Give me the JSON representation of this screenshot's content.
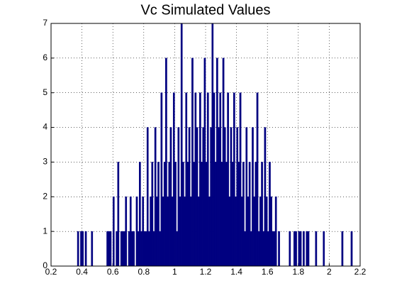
{
  "chart_data": {
    "type": "histogram",
    "title": "Vc Simulated Values",
    "bins": [
      0.36,
      0.37,
      0.38,
      0.39,
      0.4,
      0.41,
      0.42,
      0.43,
      0.44,
      0.45,
      0.46,
      0.47,
      0.48,
      0.49,
      0.5,
      0.51,
      0.52,
      0.53,
      0.54,
      0.55,
      0.56,
      0.57,
      0.58,
      0.59,
      0.6,
      0.61,
      0.62,
      0.63,
      0.64,
      0.65,
      0.66,
      0.67,
      0.68,
      0.69,
      0.7,
      0.71,
      0.72,
      0.73,
      0.74,
      0.75,
      0.76,
      0.77,
      0.78,
      0.79,
      0.8,
      0.81,
      0.82,
      0.83,
      0.84,
      0.85,
      0.86,
      0.87,
      0.88,
      0.89,
      0.9,
      0.91,
      0.92,
      0.93,
      0.94,
      0.95,
      0.96,
      0.97,
      0.98,
      0.99,
      1.0,
      1.01,
      1.02,
      1.03,
      1.04,
      1.05,
      1.06,
      1.07,
      1.08,
      1.09,
      1.1,
      1.11,
      1.12,
      1.13,
      1.14,
      1.15,
      1.16,
      1.17,
      1.18,
      1.19,
      1.2,
      1.21,
      1.22,
      1.23,
      1.24,
      1.25,
      1.26,
      1.27,
      1.28,
      1.29,
      1.3,
      1.31,
      1.32,
      1.33,
      1.34,
      1.35,
      1.36,
      1.37,
      1.38,
      1.39,
      1.4,
      1.41,
      1.42,
      1.43,
      1.44,
      1.45,
      1.46,
      1.47,
      1.48,
      1.49,
      1.5,
      1.51,
      1.52,
      1.53,
      1.54,
      1.55,
      1.56,
      1.57,
      1.58,
      1.59,
      1.6,
      1.61,
      1.62,
      1.63,
      1.64,
      1.65,
      1.66,
      1.67,
      1.68,
      1.69,
      1.7,
      1.71,
      1.72,
      1.73,
      1.74,
      1.75,
      1.76,
      1.77,
      1.78,
      1.79,
      1.8,
      1.81,
      1.82,
      1.83,
      1.84,
      1.85,
      1.86,
      1.87,
      1.88,
      1.89,
      1.9,
      1.91,
      1.92,
      1.93,
      1.94,
      1.95,
      1.96,
      1.97,
      1.98,
      1.99,
      2.0,
      2.01,
      2.02,
      2.03,
      2.04,
      2.05,
      2.06,
      2.07,
      2.08,
      2.09,
      2.1,
      2.11,
      2.12,
      2.13,
      2.14,
      2.15,
      2.16
    ],
    "counts": [
      0,
      1,
      0,
      1,
      1,
      0,
      1,
      0,
      0,
      0,
      1,
      0,
      0,
      0,
      0,
      0,
      0,
      0,
      0,
      0,
      1,
      1,
      1,
      0,
      2,
      0,
      1,
      3,
      0,
      1,
      1,
      1,
      2,
      0,
      1,
      2,
      1,
      1,
      0,
      2,
      1,
      3,
      1,
      2,
      1,
      1,
      4,
      1,
      2,
      3,
      1,
      4,
      2,
      3,
      1,
      5,
      2,
      3,
      6,
      2,
      3,
      4,
      2,
      5,
      3,
      1,
      4,
      2,
      7,
      3,
      2,
      5,
      3,
      4,
      2,
      6,
      3,
      5,
      4,
      2,
      5,
      3,
      4,
      6,
      3,
      5,
      2,
      4,
      7,
      5,
      3,
      6,
      4,
      5,
      3,
      6,
      4,
      3,
      5,
      2,
      4,
      3,
      5,
      2,
      4,
      3,
      5,
      2,
      3,
      1,
      4,
      2,
      3,
      1,
      4,
      2,
      3,
      5,
      1,
      2,
      3,
      1,
      4,
      2,
      1,
      3,
      2,
      1,
      1,
      2,
      0,
      1,
      0,
      0,
      0,
      0,
      0,
      0,
      1,
      0,
      0,
      1,
      1,
      0,
      1,
      1,
      0,
      1,
      0,
      1,
      1,
      0,
      0,
      0,
      0,
      1,
      0,
      0,
      0,
      0,
      1,
      0,
      0,
      0,
      0,
      0,
      0,
      0,
      0,
      0,
      0,
      0,
      1,
      0,
      0,
      0,
      0,
      0,
      1,
      0
    ],
    "color": "#000080",
    "xlim": [
      0.2,
      2.2
    ],
    "xticks": [
      0.2,
      0.4,
      0.6,
      0.8,
      1,
      1.2,
      1.4,
      1.6,
      1.8,
      2,
      2.2
    ],
    "ylim": [
      0,
      7
    ],
    "yticks": [
      0,
      1,
      2,
      3,
      4,
      5,
      6,
      7
    ],
    "grid": true
  }
}
